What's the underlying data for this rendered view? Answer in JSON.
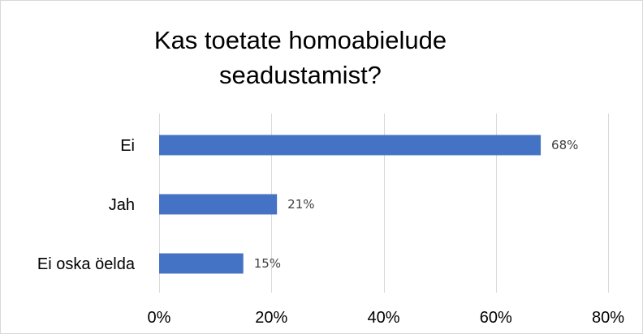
{
  "chart_data": {
    "type": "bar",
    "orientation": "horizontal",
    "title_lines": [
      "Kas toetate homoabielude",
      "seadustamist?"
    ],
    "categories": [
      "Ei",
      "Jah",
      "Ei oska öelda"
    ],
    "values": [
      68,
      21,
      15
    ],
    "data_labels": [
      "68%",
      "21%",
      "15%"
    ],
    "xlim": [
      0,
      80
    ],
    "x_ticks": [
      0,
      20,
      40,
      60,
      80
    ],
    "x_tick_labels": [
      "0%",
      "20%",
      "40%",
      "60%",
      "80%"
    ],
    "grid": true,
    "legend": "none",
    "colors": {
      "bar": "#4472c4",
      "grid": "#d9d9d9",
      "frame": "#d9d9d9"
    }
  }
}
